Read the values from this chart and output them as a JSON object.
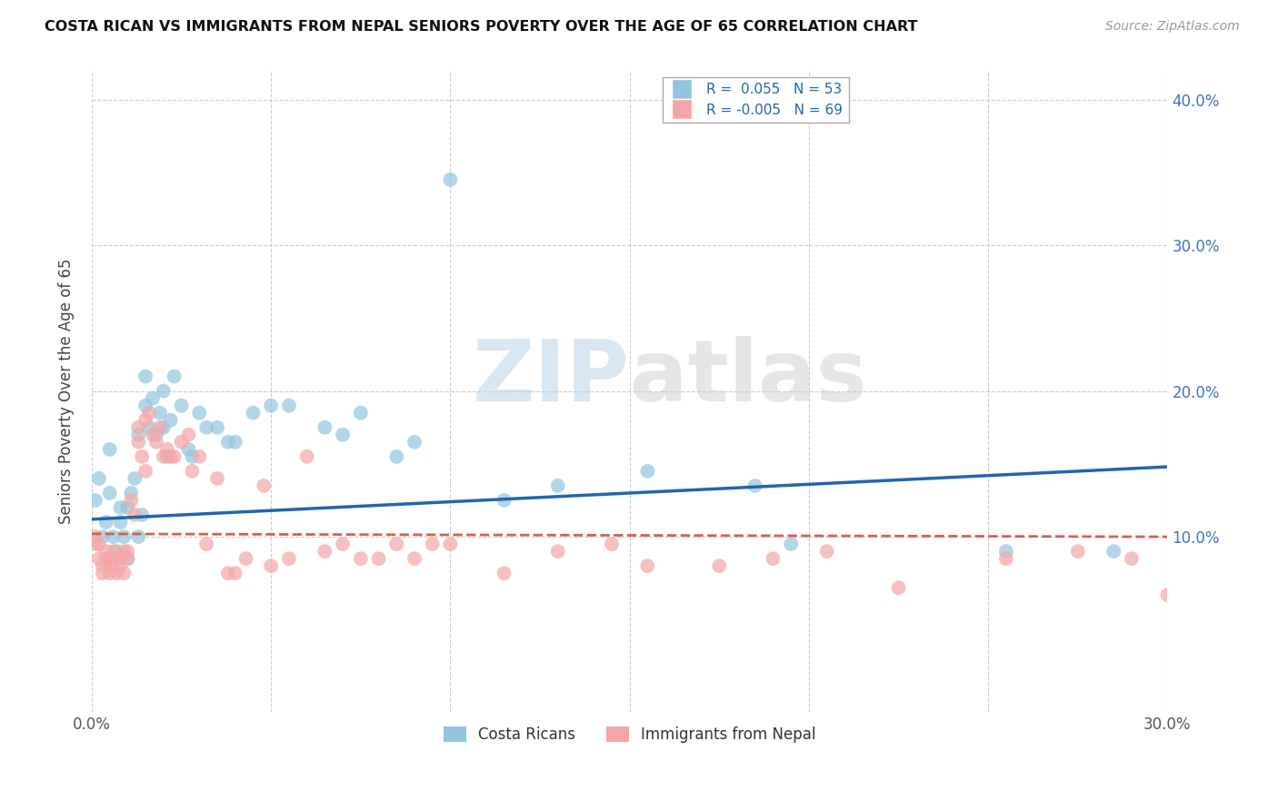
{
  "title": "COSTA RICAN VS IMMIGRANTS FROM NEPAL SENIORS POVERTY OVER THE AGE OF 65 CORRELATION CHART",
  "source": "Source: ZipAtlas.com",
  "ylabel": "Seniors Poverty Over the Age of 65",
  "xlim": [
    0.0,
    0.3
  ],
  "ylim": [
    -0.02,
    0.42
  ],
  "xticks": [
    0.0,
    0.05,
    0.1,
    0.15,
    0.2,
    0.25,
    0.3
  ],
  "yticks": [
    0.1,
    0.2,
    0.3,
    0.4
  ],
  "xtick_labels": [
    "0.0%",
    "",
    "",
    "",
    "",
    "",
    "30.0%"
  ],
  "right_ytick_labels": [
    "10.0%",
    "20.0%",
    "30.0%",
    "40.0%"
  ],
  "right_yticks": [
    0.1,
    0.2,
    0.3,
    0.4
  ],
  "blue_color": "#92c5de",
  "pink_color": "#f4a6a6",
  "blue_line_color": "#2166ac",
  "pink_line_color": "#d6604d",
  "r_blue": 0.055,
  "n_blue": 53,
  "r_pink": -0.005,
  "n_pink": 69,
  "watermark_zip": "ZIP",
  "watermark_atlas": "atlas",
  "blue_scatter_x": [
    0.001,
    0.002,
    0.003,
    0.004,
    0.005,
    0.005,
    0.006,
    0.007,
    0.008,
    0.008,
    0.009,
    0.01,
    0.01,
    0.011,
    0.012,
    0.013,
    0.013,
    0.014,
    0.015,
    0.015,
    0.016,
    0.017,
    0.018,
    0.019,
    0.02,
    0.02,
    0.021,
    0.022,
    0.023,
    0.025,
    0.027,
    0.028,
    0.03,
    0.032,
    0.035,
    0.038,
    0.04,
    0.045,
    0.05,
    0.055,
    0.065,
    0.07,
    0.075,
    0.085,
    0.09,
    0.1,
    0.115,
    0.13,
    0.155,
    0.185,
    0.195,
    0.255,
    0.285
  ],
  "blue_scatter_y": [
    0.125,
    0.14,
    0.1,
    0.11,
    0.13,
    0.16,
    0.1,
    0.09,
    0.11,
    0.12,
    0.1,
    0.085,
    0.12,
    0.13,
    0.14,
    0.17,
    0.1,
    0.115,
    0.19,
    0.21,
    0.175,
    0.195,
    0.17,
    0.185,
    0.2,
    0.175,
    0.155,
    0.18,
    0.21,
    0.19,
    0.16,
    0.155,
    0.185,
    0.175,
    0.175,
    0.165,
    0.165,
    0.185,
    0.19,
    0.19,
    0.175,
    0.17,
    0.185,
    0.155,
    0.165,
    0.345,
    0.125,
    0.135,
    0.145,
    0.135,
    0.095,
    0.09,
    0.09
  ],
  "pink_scatter_x": [
    0.001,
    0.001,
    0.002,
    0.002,
    0.003,
    0.003,
    0.004,
    0.004,
    0.005,
    0.005,
    0.005,
    0.006,
    0.006,
    0.007,
    0.007,
    0.008,
    0.008,
    0.009,
    0.009,
    0.01,
    0.01,
    0.011,
    0.012,
    0.013,
    0.013,
    0.014,
    0.015,
    0.015,
    0.016,
    0.017,
    0.018,
    0.019,
    0.02,
    0.021,
    0.022,
    0.023,
    0.025,
    0.027,
    0.028,
    0.03,
    0.032,
    0.035,
    0.038,
    0.04,
    0.043,
    0.048,
    0.05,
    0.055,
    0.06,
    0.065,
    0.07,
    0.075,
    0.08,
    0.085,
    0.09,
    0.095,
    0.1,
    0.115,
    0.13,
    0.145,
    0.155,
    0.175,
    0.19,
    0.205,
    0.225,
    0.255,
    0.275,
    0.29,
    0.3
  ],
  "pink_scatter_y": [
    0.1,
    0.095,
    0.095,
    0.085,
    0.08,
    0.075,
    0.085,
    0.09,
    0.08,
    0.075,
    0.085,
    0.085,
    0.09,
    0.085,
    0.075,
    0.08,
    0.085,
    0.09,
    0.075,
    0.085,
    0.09,
    0.125,
    0.115,
    0.175,
    0.165,
    0.155,
    0.145,
    0.18,
    0.185,
    0.17,
    0.165,
    0.175,
    0.155,
    0.16,
    0.155,
    0.155,
    0.165,
    0.17,
    0.145,
    0.155,
    0.095,
    0.14,
    0.075,
    0.075,
    0.085,
    0.135,
    0.08,
    0.085,
    0.155,
    0.09,
    0.095,
    0.085,
    0.085,
    0.095,
    0.085,
    0.095,
    0.095,
    0.075,
    0.09,
    0.095,
    0.08,
    0.08,
    0.085,
    0.09,
    0.065,
    0.085,
    0.09,
    0.085,
    0.06
  ]
}
